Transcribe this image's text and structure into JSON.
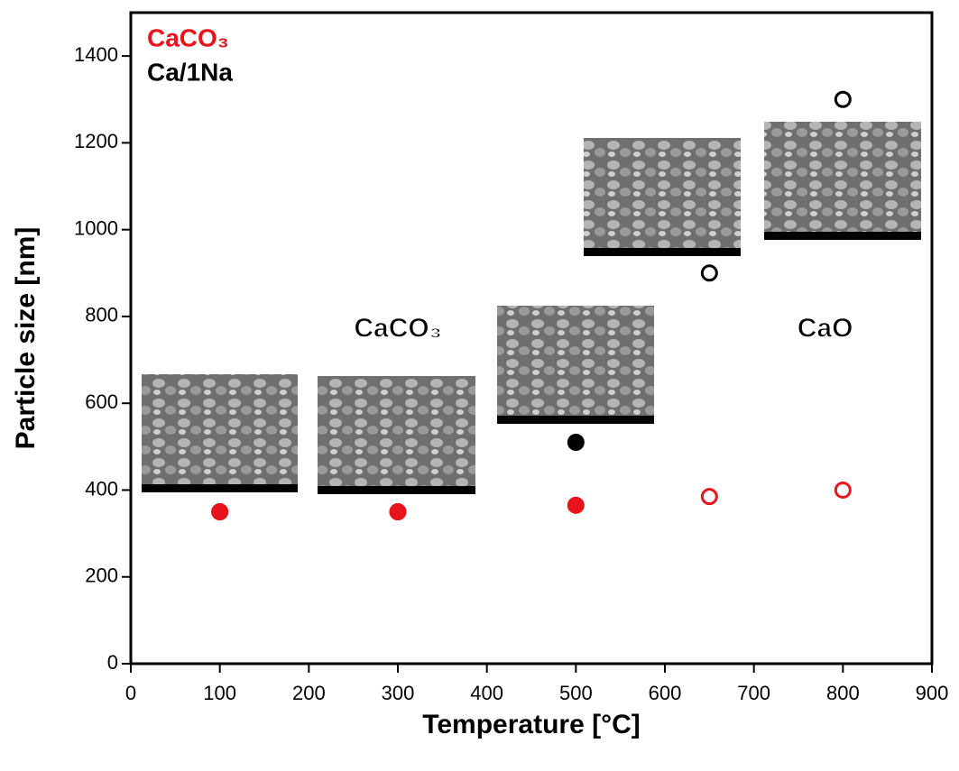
{
  "chart_data": {
    "type": "scatter",
    "x_label": "Temperature [°C]",
    "y_label": "Particle size [nm]",
    "xlim": [
      0,
      900
    ],
    "ylim": [
      0,
      1500
    ],
    "xticks": [
      0,
      100,
      200,
      300,
      400,
      500,
      600,
      700,
      800,
      900
    ],
    "yticks": [
      0,
      200,
      400,
      600,
      800,
      1000,
      1200,
      1400
    ],
    "legend": "upper left",
    "annotations": [
      "CaCO₃",
      "CaO"
    ],
    "series": [
      {
        "name": "CaCO₃",
        "color": "#e8141c",
        "x": [
          100,
          300,
          500,
          650,
          800
        ],
        "values": [
          350,
          350,
          365,
          385,
          400
        ],
        "filled": [
          true,
          true,
          true,
          false,
          false
        ]
      },
      {
        "name": "Ca/1Na",
        "color": "#000000",
        "x": [
          100,
          300,
          500,
          650,
          800
        ],
        "values": [
          350,
          350,
          510,
          900,
          1300
        ],
        "filled": [
          false,
          false,
          true,
          false,
          false
        ]
      }
    ]
  }
}
